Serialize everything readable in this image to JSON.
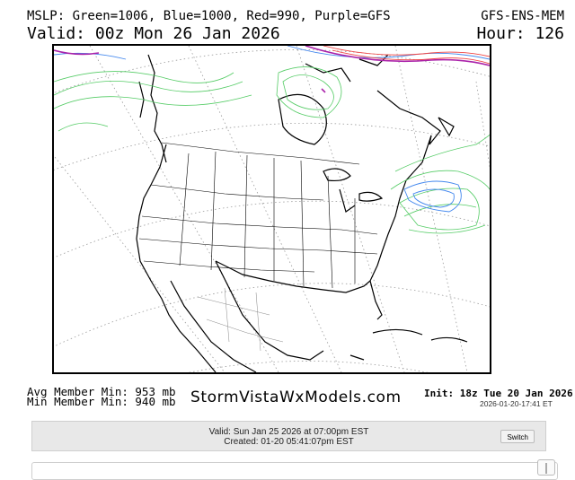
{
  "header": {
    "title_left": "MSLP: Green=1006, Blue=1000, Red=990, Purple=GFS",
    "title_right": "GFS-ENS-MEM",
    "valid": "Valid: 00z Mon 26 Jan 2026",
    "hour": "Hour: 126"
  },
  "footer": {
    "avg_min": "Avg Member Min: 953 mb",
    "min_min": "Min Member Min: 940 mb",
    "site": "StormVistaWxModels.com",
    "init": "Init: 18z Tue 20 Jan 2026",
    "created_ts": "2026-01-20-17:41 ET"
  },
  "info_bar": {
    "valid": "Valid: Sun Jan 25 2026 at 07:00pm EST",
    "created": "Created: 01-20 05:41:07pm EST",
    "switch_label": "Switch"
  },
  "map": {
    "region": "North America",
    "projection": "polar stereographic",
    "contour_colors": {
      "green_1006": "#55cc66",
      "blue_1000": "#4488ee",
      "red_990": "#ee4444",
      "purple_gfs": "#aa22aa"
    }
  }
}
